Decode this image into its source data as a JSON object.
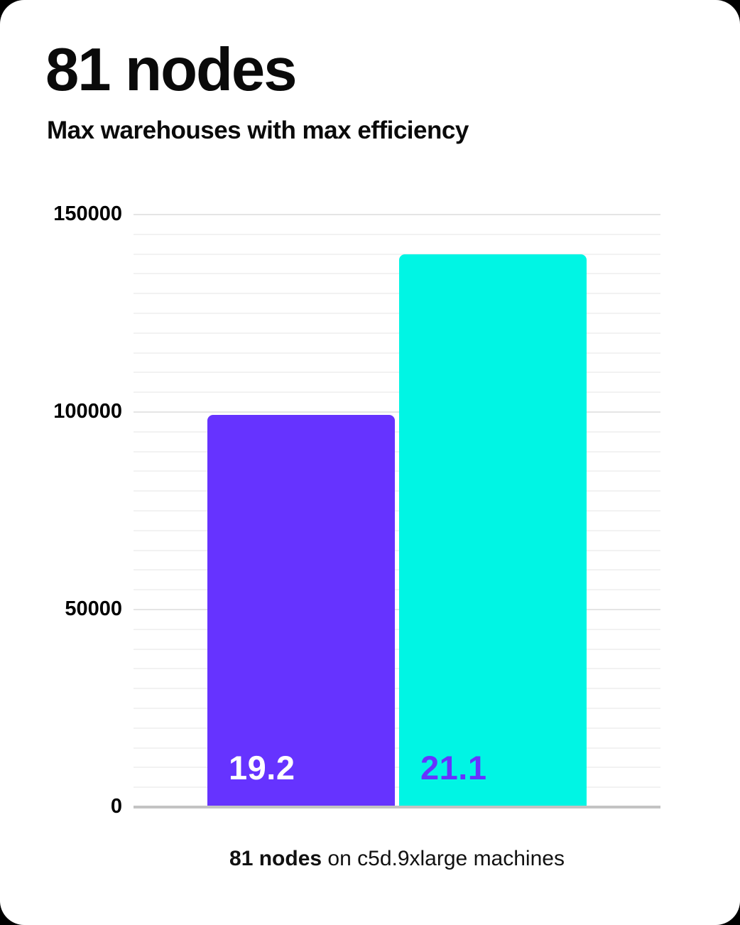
{
  "page": {
    "background_color": "#000000",
    "card_color": "#ffffff"
  },
  "header": {
    "title": "81 nodes",
    "subtitle": "Max warehouses with max efficiency"
  },
  "caption": {
    "bold": "81 nodes",
    "rest": " on c5d.9xlarge machines"
  },
  "chart_data": {
    "type": "bar",
    "title": "81 nodes",
    "subtitle": "Max warehouses with max efficiency",
    "xlabel": "81 nodes on c5d.9xlarge machines",
    "ylabel": "",
    "ylim": [
      0,
      150000
    ],
    "y_ticks": [
      0,
      50000,
      100000,
      150000
    ],
    "minor_grid_step": 5000,
    "major_grid_step": 50000,
    "grid": true,
    "legend": "none",
    "categories": [
      "19.2",
      "21.1"
    ],
    "bars": [
      {
        "label": "19.2",
        "value": 99300,
        "color": "#6633ff",
        "label_color": "#ffffff"
      },
      {
        "label": "21.1",
        "value": 140000,
        "color": "#00f5e4",
        "label_color": "#6633ff"
      }
    ]
  }
}
